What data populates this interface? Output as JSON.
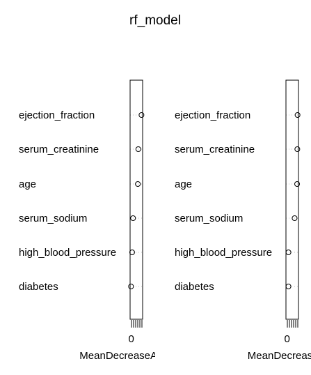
{
  "chart_data": {
    "type": "scatter",
    "title": "rf_model",
    "panels": [
      {
        "xlabel": "MeanDecreaseAccuracy",
        "xticks": [
          "0"
        ],
        "xlim": [
          -0.5,
          5
        ],
        "categories": [
          "ejection_fraction",
          "serum_creatinine",
          "age",
          "serum_sodium",
          "high_blood_pressure",
          "diabetes"
        ],
        "values": [
          4.5,
          3.1,
          2.9,
          0.8,
          0.4,
          -0.1
        ]
      },
      {
        "xlabel": "MeanDecreaseGini",
        "xticks": [
          "0"
        ],
        "xlim": [
          -0.5,
          5
        ],
        "categories": [
          "ejection_fraction",
          "serum_creatinine",
          "age",
          "serum_sodium",
          "high_blood_pressure",
          "diabetes"
        ],
        "values": [
          4.6,
          4.5,
          4.4,
          3.3,
          0.6,
          0.6
        ]
      }
    ]
  }
}
